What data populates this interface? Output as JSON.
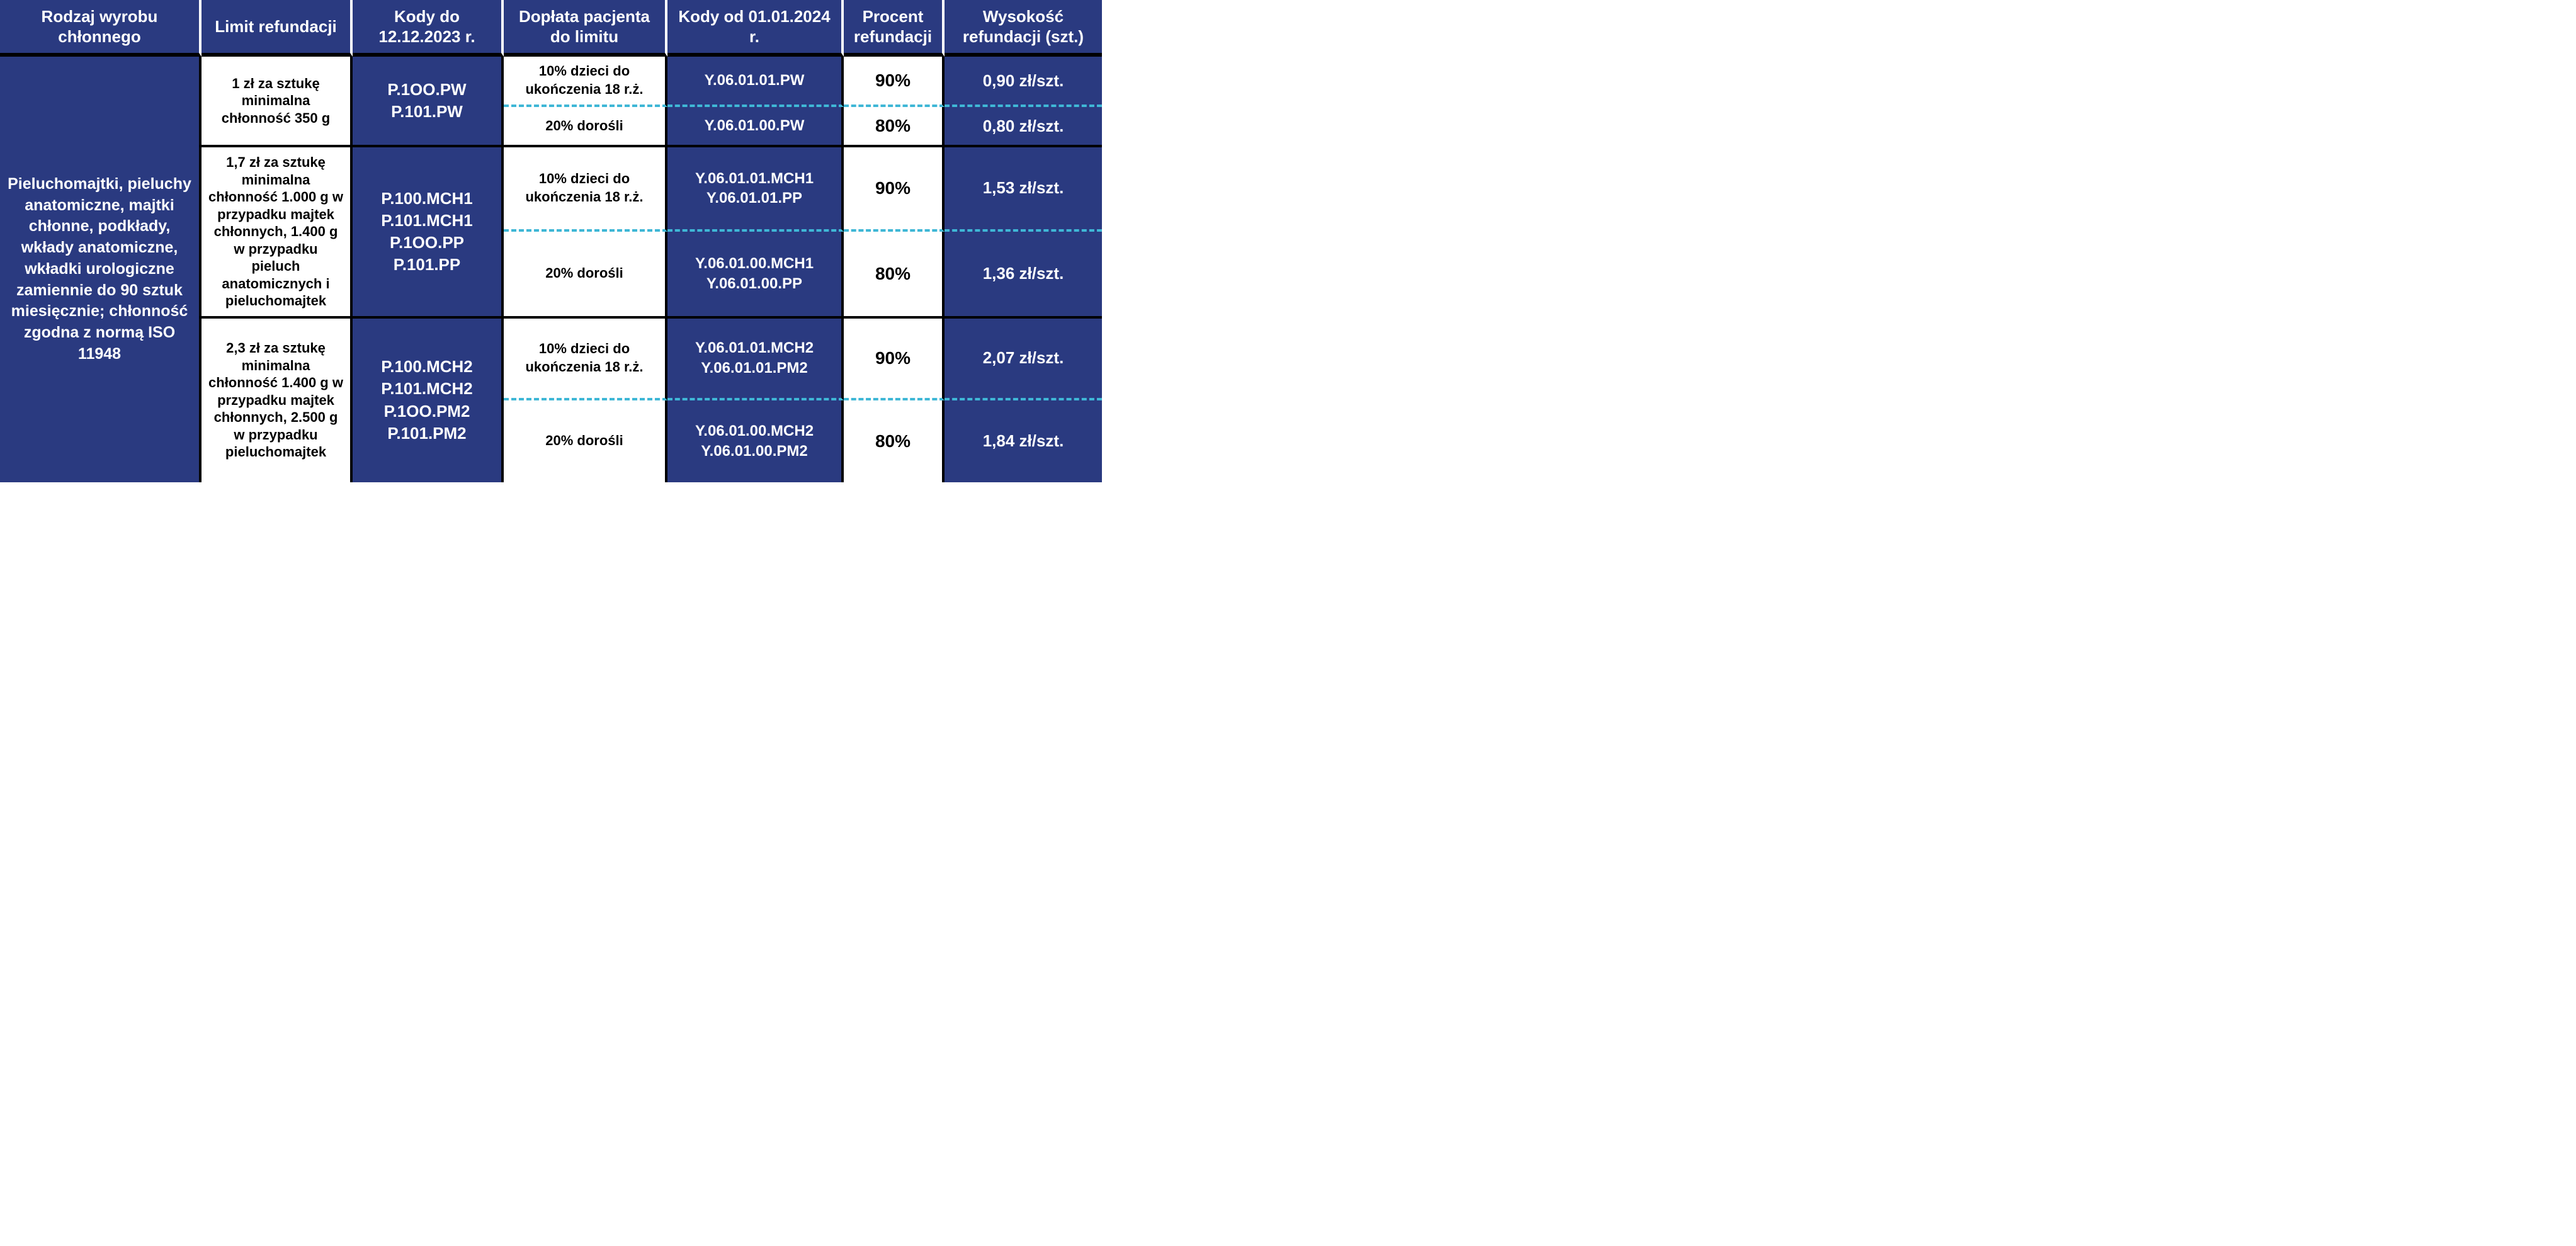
{
  "colors": {
    "blue": "#2a3a80",
    "white": "#ffffff",
    "black": "#000000",
    "dash": "#3fb7d6"
  },
  "headers": {
    "col1": "Rodzaj wyrobu chłonnego",
    "col2": "Limit refundacji",
    "col3": "Kody do 12.12.2023 r.",
    "col4": "Dopłata pacjenta do limitu",
    "col5": "Kody od 01.01.2024 r.",
    "col6": "Procent refundacji",
    "col7": "Wysokość refundacji (szt.)"
  },
  "rowspan_label": "Pieluchomajtki, pieluchy anatomiczne, majtki chłonne, podkłady, wkłady anatomiczne, wkładki urologiczne zamiennie do 90 sztuk miesięcznie; chłonność zgodna z normą ISO 11948",
  "groups": [
    {
      "limit": "1 zł za sztukę minimalna chłonność 350 g",
      "old_codes": "P.1OO.PW\nP.101.PW",
      "top": {
        "doplata": "10% dzieci do ukończenia 18 r.ż.",
        "new_codes": "Y.06.01.01.PW",
        "pct": "90%",
        "amount": "0,90 zł/szt."
      },
      "bot": {
        "doplata": "20% dorośli",
        "new_codes": "Y.06.01.00.PW",
        "pct": "80%",
        "amount": "0,80 zł/szt."
      }
    },
    {
      "limit": "1,7 zł za sztukę minimalna chłonność 1.000 g w przypadku majtek chłonnych, 1.400 g w przypadku pieluch anatomicznych i pieluchomajtek",
      "old_codes": "P.100.MCH1\nP.101.MCH1\nP.1OO.PP\nP.101.PP",
      "top": {
        "doplata": "10% dzieci do ukończenia 18 r.ż.",
        "new_codes": "Y.06.01.01.MCH1\nY.06.01.01.PP",
        "pct": "90%",
        "amount": "1,53 zł/szt."
      },
      "bot": {
        "doplata": "20% dorośli",
        "new_codes": "Y.06.01.00.MCH1\nY.06.01.00.PP",
        "pct": "80%",
        "amount": "1,36 zł/szt."
      }
    },
    {
      "limit": "2,3 zł za sztukę minimalna chłonność 1.400 g w przypadku majtek chłonnych, 2.500 g w przypadku pieluchomajtek",
      "old_codes": "P.100.MCH2\nP.101.MCH2\nP.1OO.PM2\nP.101.PM2",
      "top": {
        "doplata": "10% dzieci do ukończenia 18 r.ż.",
        "new_codes": "Y.06.01.01.MCH2\nY.06.01.01.PM2",
        "pct": "90%",
        "amount": "2,07 zł/szt."
      },
      "bot": {
        "doplata": "20% dorośli",
        "new_codes": "Y.06.01.00.MCH2\nY.06.01.00.PM2",
        "pct": "80%",
        "amount": "1,84 zł/szt."
      }
    }
  ]
}
